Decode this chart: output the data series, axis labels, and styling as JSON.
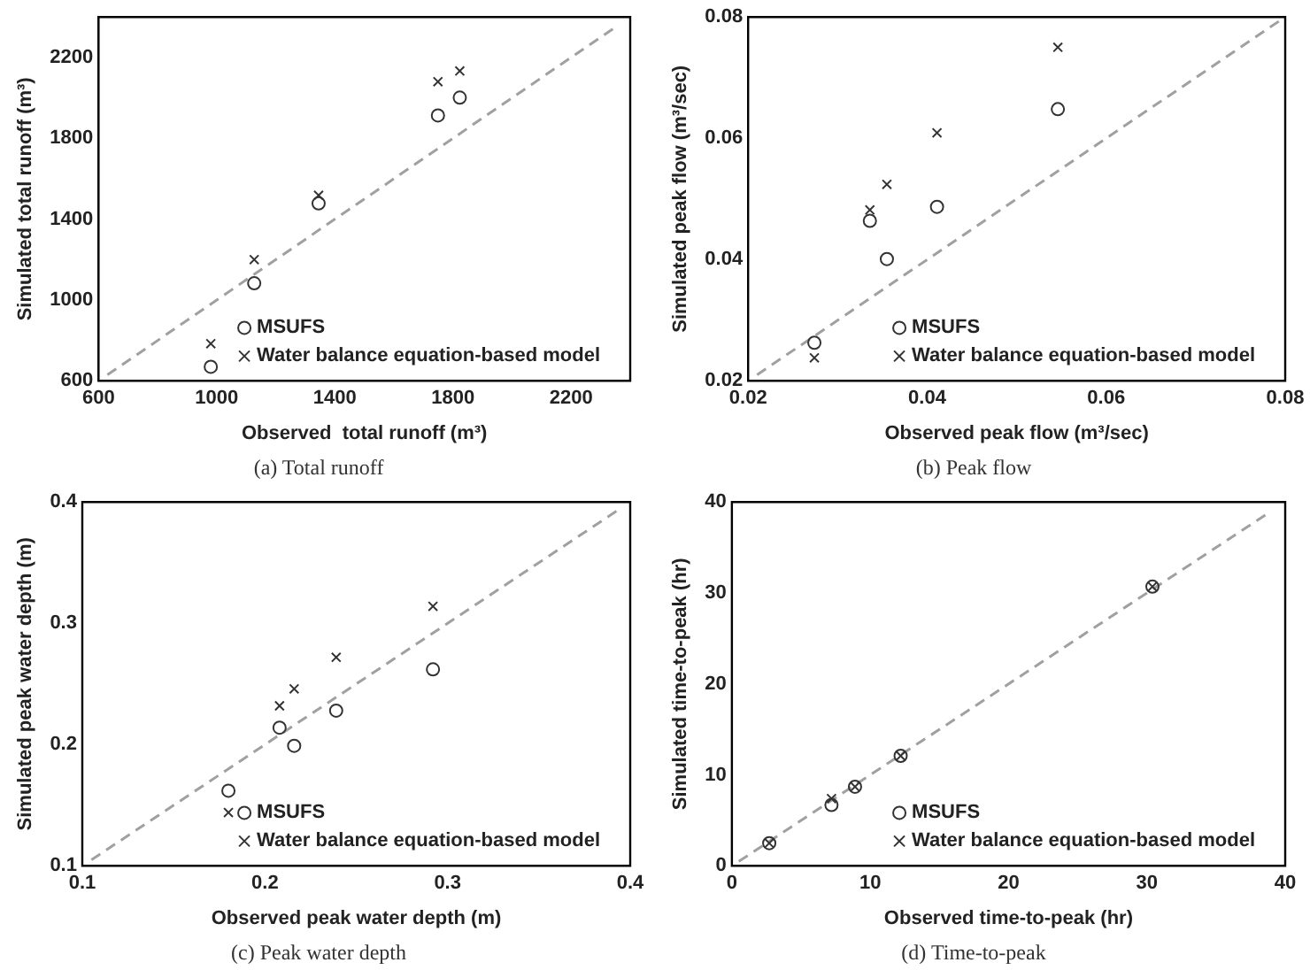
{
  "chart_data": [
    {
      "type": "scatter",
      "title": "(a) Total runoff",
      "xlabel": "Observed  total runoff (m³)",
      "ylabel": "Simulated total runoff (m³)",
      "xlim": [
        600,
        2400
      ],
      "ylim": [
        600,
        2400
      ],
      "xticks": [
        600,
        1000,
        1400,
        1800,
        2200
      ],
      "yticks": [
        600,
        1000,
        1400,
        1800,
        2200
      ],
      "grid": false,
      "legend": "bottom right",
      "series": [
        {
          "name": "MSUFS",
          "color": "#333333",
          "marker": "circle",
          "x": [
            980,
            1127,
            1345,
            1749,
            1823
          ],
          "values": [
            670,
            1083,
            1478,
            1913,
            2001
          ]
        },
        {
          "name": "Water balance equation-based model",
          "color": "#333333",
          "marker": "cross",
          "x": [
            980,
            1127,
            1345,
            1749,
            1823
          ],
          "values": [
            784,
            1200,
            1518,
            2080,
            2133
          ]
        },
        {
          "type": "line",
          "color": "#a0a0a0",
          "marker": "none",
          "line_style": "dashed",
          "x": [
            630,
            2350
          ],
          "values": [
            630,
            2350
          ]
        }
      ]
    },
    {
      "type": "scatter",
      "title": "(b) Peak flow",
      "xlabel": "Observed peak flow (m³/sec)",
      "ylabel": "Simulated peak flow (m³/sec)",
      "xlim": [
        0.02,
        0.08
      ],
      "ylim": [
        0.02,
        0.08
      ],
      "xticks": [
        0.02,
        0.04,
        0.06,
        0.08
      ],
      "yticks": [
        0.02,
        0.04,
        0.06,
        0.08
      ],
      "grid": false,
      "legend": "bottom right",
      "series": [
        {
          "name": "MSUFS",
          "color": "#333333",
          "marker": "circle",
          "x": [
            0.0274,
            0.0336,
            0.0355,
            0.0411,
            0.0546
          ],
          "values": [
            0.0263,
            0.0464,
            0.0401,
            0.0487,
            0.0648
          ]
        },
        {
          "name": "Water balance equation-based model",
          "color": "#333333",
          "marker": "cross",
          "x": [
            0.0274,
            0.0336,
            0.0355,
            0.0411,
            0.0546
          ],
          "values": [
            0.0238,
            0.0482,
            0.0524,
            0.0609,
            0.075
          ]
        },
        {
          "type": "line",
          "color": "#a0a0a0",
          "marker": "none",
          "line_style": "dashed",
          "x": [
            0.021,
            0.08
          ],
          "values": [
            0.021,
            0.08
          ]
        }
      ]
    },
    {
      "type": "scatter",
      "title": "(c) Peak water depth",
      "xlabel": "Observed peak water depth (m)",
      "ylabel": "Simulated peak water depth (m)",
      "xlim": [
        0.1,
        0.4
      ],
      "ylim": [
        0.1,
        0.4
      ],
      "xticks": [
        0.1,
        0.2,
        0.3,
        0.4
      ],
      "yticks": [
        0.1,
        0.2,
        0.3,
        0.4
      ],
      "grid": false,
      "legend": "bottom right",
      "series": [
        {
          "name": "MSUFS",
          "color": "#333333",
          "marker": "circle",
          "x": [
            0.18,
            0.208,
            0.216,
            0.239,
            0.292
          ],
          "values": [
            0.162,
            0.214,
            0.199,
            0.228,
            0.262
          ]
        },
        {
          "name": "Water balance equation-based model",
          "color": "#333333",
          "marker": "cross",
          "x": [
            0.18,
            0.208,
            0.216,
            0.239,
            0.292
          ],
          "values": [
            0.144,
            0.232,
            0.246,
            0.272,
            0.314
          ]
        },
        {
          "type": "line",
          "color": "#a0a0a0",
          "marker": "none",
          "line_style": "dashed",
          "x": [
            0.105,
            0.395
          ],
          "values": [
            0.105,
            0.395
          ]
        }
      ]
    },
    {
      "type": "scatter",
      "title": "(d) Time-to-peak",
      "xlabel": "Observed time-to-peak (hr)",
      "ylabel": "Simulated time-to-peak (hr)",
      "xlim": [
        0,
        40
      ],
      "ylim": [
        0,
        40
      ],
      "xticks": [
        0,
        10,
        20,
        30,
        40
      ],
      "yticks": [
        0,
        10,
        20,
        30,
        40
      ],
      "grid": false,
      "legend": "bottom right",
      "series": [
        {
          "name": "MSUFS",
          "color": "#333333",
          "marker": "circle",
          "x": [
            2.7,
            7.2,
            8.9,
            12.2,
            30.4
          ],
          "values": [
            2.5,
            6.7,
            8.7,
            12.1,
            30.7
          ]
        },
        {
          "name": "Water balance equation-based model",
          "color": "#333333",
          "marker": "cross",
          "x": [
            2.7,
            7.2,
            8.9,
            12.2,
            30.4
          ],
          "values": [
            2.5,
            7.4,
            8.7,
            12.1,
            30.7
          ]
        },
        {
          "type": "line",
          "color": "#a0a0a0",
          "marker": "none",
          "line_style": "dashed",
          "x": [
            0.5,
            38.7
          ],
          "values": [
            0.5,
            38.7
          ]
        }
      ]
    }
  ]
}
